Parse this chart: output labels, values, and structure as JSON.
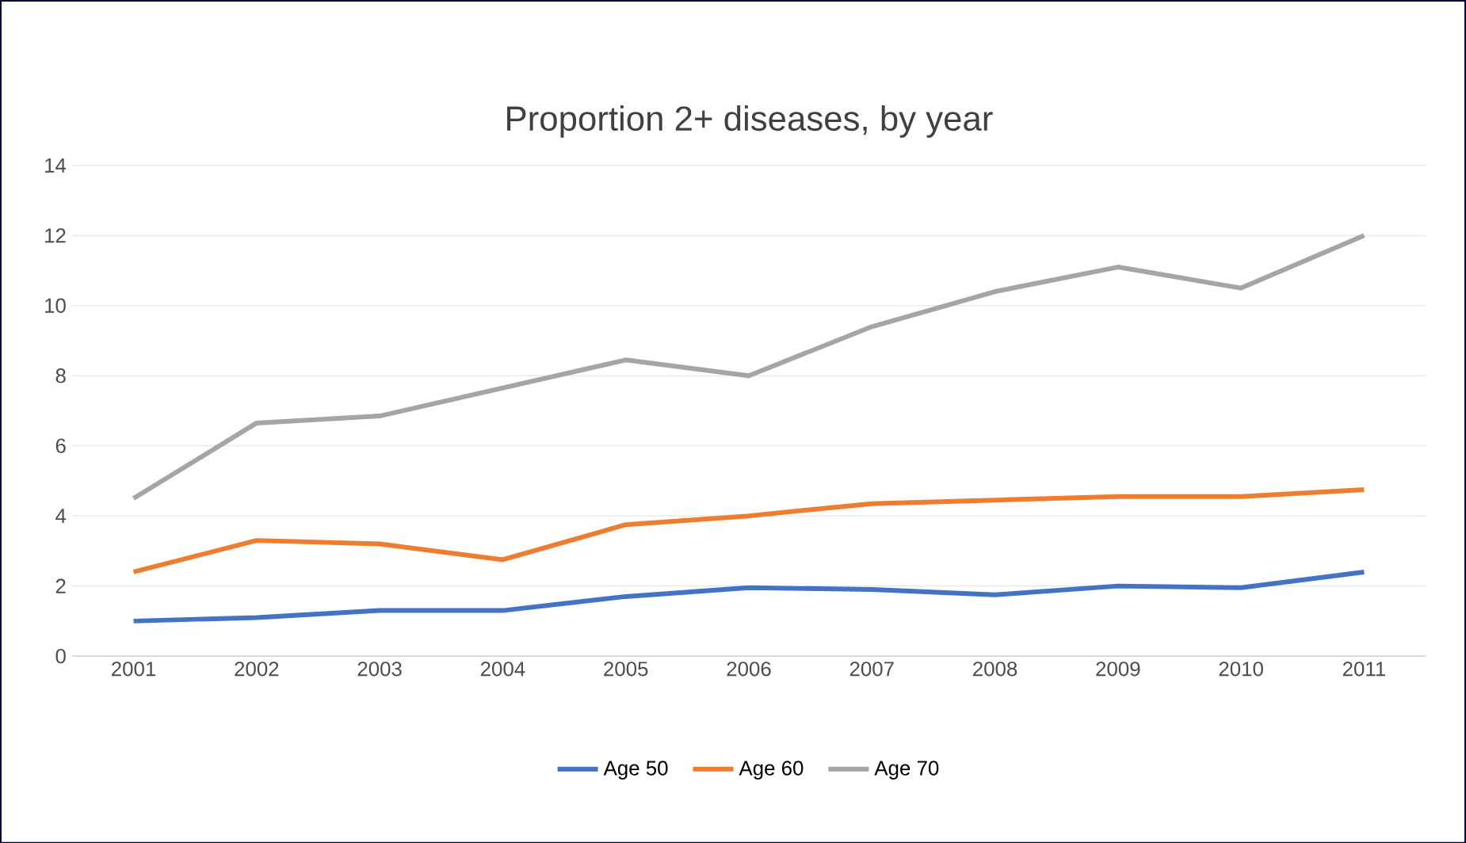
{
  "chart_data": {
    "type": "line",
    "title": "Proportion 2+ diseases, by year",
    "categories": [
      "2001",
      "2002",
      "2003",
      "2004",
      "2005",
      "2006",
      "2007",
      "2008",
      "2009",
      "2010",
      "2011"
    ],
    "series": [
      {
        "name": "Age 50",
        "color": "#4472c4",
        "values": [
          1.0,
          1.1,
          1.3,
          1.3,
          1.7,
          1.95,
          1.9,
          1.75,
          2.0,
          1.95,
          2.4
        ]
      },
      {
        "name": "Age 60",
        "color": "#ed7d31",
        "values": [
          2.4,
          3.3,
          3.2,
          2.75,
          3.75,
          4.0,
          4.35,
          4.45,
          4.55,
          4.55,
          4.75
        ]
      },
      {
        "name": "Age 70",
        "color": "#a5a5a5",
        "values": [
          4.5,
          6.65,
          6.85,
          7.65,
          8.45,
          8.0,
          9.4,
          10.4,
          11.1,
          10.5,
          12.0
        ]
      }
    ],
    "ylim": [
      0,
      14
    ],
    "yticks": [
      0,
      2,
      4,
      6,
      8,
      10,
      12,
      14
    ],
    "grid": "y",
    "legend": "bottom",
    "marker": "none",
    "line_style": "solid"
  }
}
